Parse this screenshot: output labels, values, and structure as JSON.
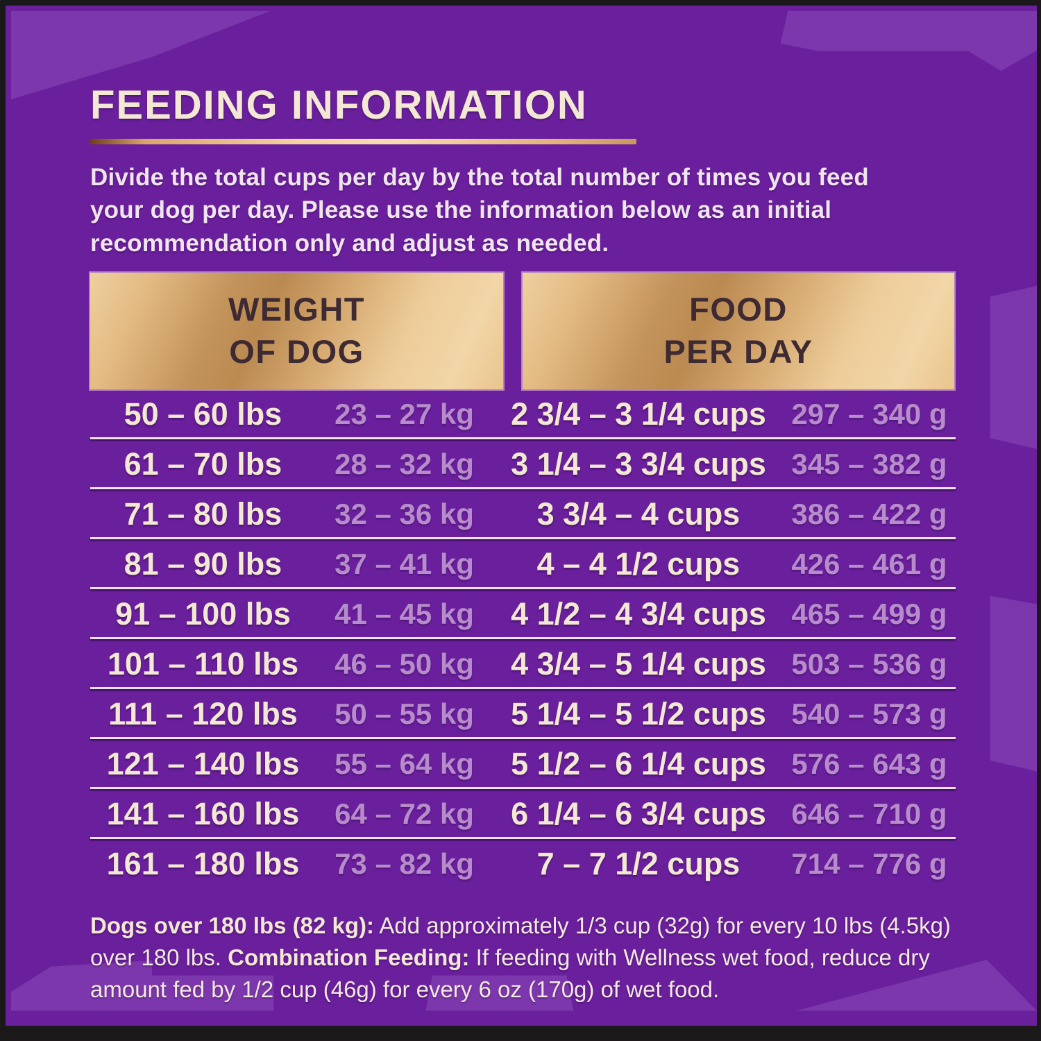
{
  "colors": {
    "frame": "#1b181a",
    "background": "#6a1f9d",
    "ray": "#7c37ac",
    "cream": "#f2e8d3",
    "body_text": "#f0e5ef",
    "lavender": "#b78ccb",
    "header_text": "#3e2a33",
    "gold_light": "#f2d6a7",
    "gold_dark": "#ba8a51",
    "separator": "#ece2f0"
  },
  "header": {
    "title": "FEEDING INFORMATION",
    "intro": "Divide the total cups per day by the total number of times you feed\nyour dog per day. Please use the information below as an initial\nrecommendation only and adjust as needed."
  },
  "table": {
    "weight_header": "WEIGHT\nOF DOG",
    "food_header": "FOOD\nPER DAY",
    "rows": [
      {
        "lbs": "50 – 60 lbs",
        "kg": "23 – 27 kg",
        "cups": "2 3/4 – 3 1/4 cups",
        "grams": "297 – 340 g"
      },
      {
        "lbs": "61 – 70 lbs",
        "kg": "28 – 32 kg",
        "cups": "3 1/4 – 3 3/4 cups",
        "grams": "345 – 382 g"
      },
      {
        "lbs": "71 – 80 lbs",
        "kg": "32 – 36 kg",
        "cups": "3 3/4 – 4 cups",
        "grams": "386 – 422 g"
      },
      {
        "lbs": "81 – 90 lbs",
        "kg": "37 – 41 kg",
        "cups": "4 – 4 1/2 cups",
        "grams": "426 – 461 g"
      },
      {
        "lbs": "91 – 100 lbs",
        "kg": "41 – 45 kg",
        "cups": "4 1/2 – 4 3/4 cups",
        "grams": "465 – 499 g"
      },
      {
        "lbs": "101 – 110 lbs",
        "kg": "46 – 50 kg",
        "cups": "4 3/4 – 5 1/4 cups",
        "grams": "503 – 536 g"
      },
      {
        "lbs": "111 – 120 lbs",
        "kg": "50 – 55 kg",
        "cups": "5 1/4 – 5 1/2 cups",
        "grams": "540 – 573 g"
      },
      {
        "lbs": "121 – 140 lbs",
        "kg": "55 – 64 kg",
        "cups": "5 1/2 – 6 1/4 cups",
        "grams": "576 – 643 g"
      },
      {
        "lbs": "141 – 160 lbs",
        "kg": "64 – 72 kg",
        "cups": "6 1/4 – 6 3/4 cups",
        "grams": "646 – 710 g"
      },
      {
        "lbs": "161 – 180 lbs",
        "kg": "73 – 82 kg",
        "cups": "7 – 7 1/2 cups",
        "grams": "714 – 776 g"
      }
    ]
  },
  "footnote": {
    "segments": [
      {
        "bold": true,
        "text": "Dogs over 180 lbs (82 kg):"
      },
      {
        "bold": false,
        "text": " Add approximately 1/3 cup (32g) for every 10 lbs (4.5kg) over 180 lbs. "
      },
      {
        "bold": true,
        "text": "Combination Feeding:"
      },
      {
        "bold": false,
        "text": " If feeding with Wellness wet food, reduce dry amount fed by 1/2 cup (46g) for every 6 oz (170g) of wet food."
      }
    ]
  }
}
